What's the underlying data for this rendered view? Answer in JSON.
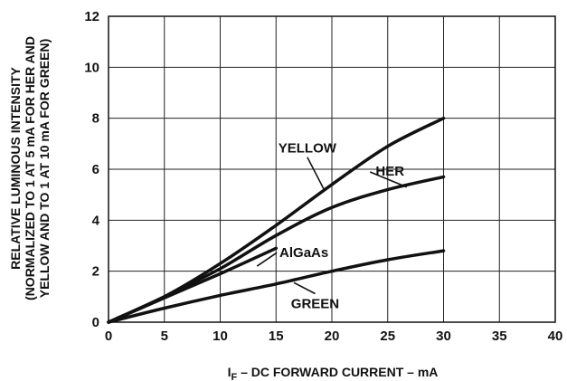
{
  "chart_data": {
    "type": "line",
    "xlabel_main": "I",
    "xlabel_sub": "F",
    "xlabel_rest": " – DC FORWARD CURRENT – mA",
    "ylabel_lines": [
      "RELATIVE LUMINOUS INTENSITY",
      "(NORMALIZED TO 1 AT 5 mA FOR HER AND",
      "YELLOW AND TO 1 AT 10 mA FOR GREEN)"
    ],
    "xlim": [
      0,
      40
    ],
    "ylim": [
      0,
      12
    ],
    "x_ticks": [
      "0",
      "5",
      "10",
      "15",
      "20",
      "25",
      "30",
      "35",
      "40"
    ],
    "y_ticks": [
      "0",
      "2",
      "4",
      "6",
      "8",
      "10",
      "12"
    ],
    "grid": true,
    "series": [
      {
        "name": "YELLOW",
        "x": [
          0,
          5,
          10,
          15,
          20,
          25,
          30
        ],
        "y": [
          0,
          1.0,
          2.3,
          3.8,
          5.4,
          6.9,
          8.0
        ]
      },
      {
        "name": "HER",
        "x": [
          0,
          5,
          10,
          15,
          20,
          25,
          30
        ],
        "y": [
          0,
          1.0,
          2.1,
          3.4,
          4.5,
          5.2,
          5.7
        ]
      },
      {
        "name": "AlGaAs",
        "x": [
          0,
          5,
          10,
          15
        ],
        "y": [
          0,
          0.95,
          1.9,
          2.9
        ]
      },
      {
        "name": "GREEN",
        "x": [
          0,
          5,
          10,
          15,
          20,
          25,
          30
        ],
        "y": [
          0,
          0.55,
          1.05,
          1.5,
          2.0,
          2.45,
          2.8
        ]
      }
    ],
    "annotations": [
      {
        "text": "YELLOW",
        "x": 17.8,
        "y": 6.65,
        "target_x": 19.3,
        "target_y": 5.2
      },
      {
        "text": "HER",
        "x": 25.2,
        "y": 5.75,
        "target_x": 26.7,
        "target_y": 5.3
      },
      {
        "text": "AlGaAs",
        "x": 17.5,
        "y": 2.55,
        "target_x": 13.3,
        "target_y": 2.2
      },
      {
        "text": "GREEN",
        "x": 18.5,
        "y": 0.55,
        "target_x": 16.6,
        "target_y": 1.55
      }
    ]
  }
}
